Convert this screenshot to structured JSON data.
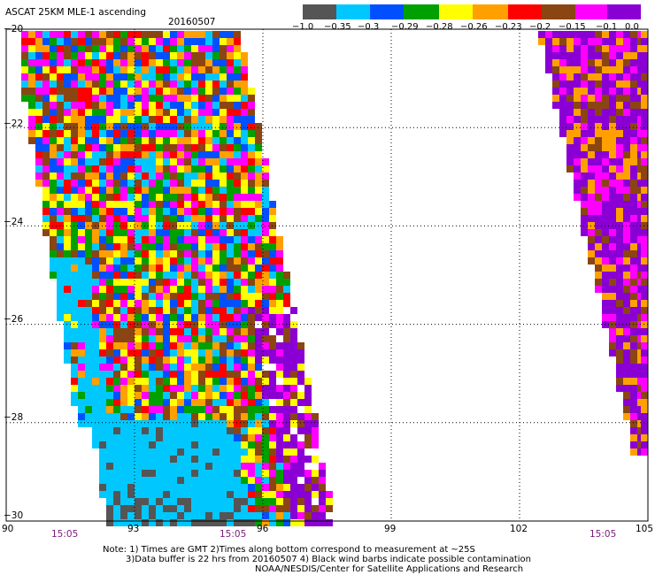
{
  "title": "ASCAT 25KM MLE-1 ascending",
  "date": "20160507",
  "colorbar": {
    "colors": [
      "#555555",
      "#00c8ff",
      "#0050ff",
      "#00a000",
      "#ffff00",
      "#ffa000",
      "#ff0000",
      "#8b4513",
      "#ff00ff",
      "#8a00d4"
    ],
    "labels": [
      "−1.0",
      "−0.35",
      "−0.3",
      "−0.29",
      "−0.28",
      "−0.26",
      "−0.23",
      "−0.2",
      "−0.15",
      "−0.1",
      "0.0"
    ]
  },
  "axes": {
    "x_ticks": [
      "90",
      "93",
      "96",
      "99",
      "102",
      "105"
    ],
    "y_ticks": [
      "−20",
      "−22",
      "−24",
      "−26",
      "−28",
      "−30"
    ],
    "x_range": [
      90,
      105
    ],
    "y_range": [
      -30,
      -20
    ],
    "grid": "dotted"
  },
  "time_labels": [
    "15:05",
    "15:05",
    "15:05"
  ],
  "notes": [
    "Note: 1) Times are GMT 2)Times along bottom correspond to measurement at ~25S",
    "3)Data buffer is 22 hrs from 20160507 4) Black wind barbs indicate possible contamination",
    "NOAA/NESDIS/Center for Satellite Applications and Research"
  ],
  "swaths": [
    {
      "name": "left",
      "mixed_palette": [
        "#ffff00",
        "#ff0000",
        "#ffa000",
        "#0050ff",
        "#00a000",
        "#ff00ff",
        "#8b4513",
        "#00c8ff"
      ]
    },
    {
      "name": "right",
      "mixed_palette": [
        "#8a00d4",
        "#8a00d4",
        "#8a00d4",
        "#ff00ff",
        "#8b4513",
        "#ffa000"
      ]
    }
  ]
}
